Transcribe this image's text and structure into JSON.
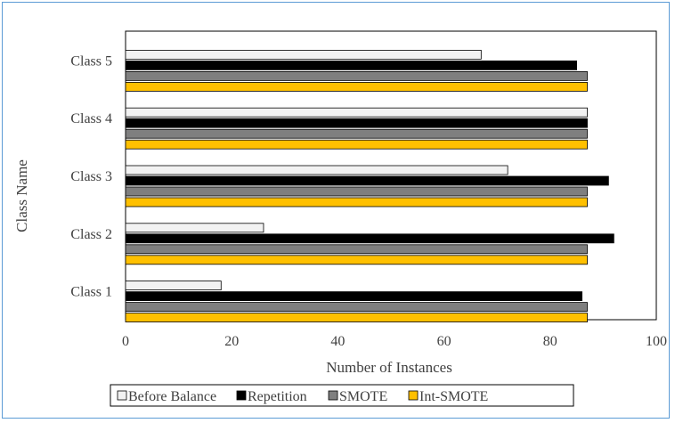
{
  "chart_data": {
    "type": "bar",
    "orientation": "horizontal",
    "title": "",
    "xlabel": "Number of Instances",
    "ylabel": "Class Name",
    "xlim": [
      0,
      100
    ],
    "xticks": [
      0,
      20,
      40,
      60,
      80,
      100
    ],
    "categories": [
      "Class 1",
      "Class 2",
      "Class 3",
      "Class 4",
      "Class 5"
    ],
    "series": [
      {
        "name": "Before Balance",
        "color": "#f2f2f2",
        "values": [
          18,
          26,
          72,
          87,
          67
        ]
      },
      {
        "name": "Repetition",
        "color": "#000000",
        "values": [
          86,
          92,
          91,
          87,
          85
        ]
      },
      {
        "name": "SMOTE",
        "color": "#7f7f7f",
        "values": [
          87,
          87,
          87,
          87,
          87
        ]
      },
      {
        "name": "Int-SMOTE",
        "color": "#ffc000",
        "values": [
          87,
          87,
          87,
          87,
          87
        ]
      }
    ],
    "grid": false,
    "legend_position": "bottom"
  }
}
